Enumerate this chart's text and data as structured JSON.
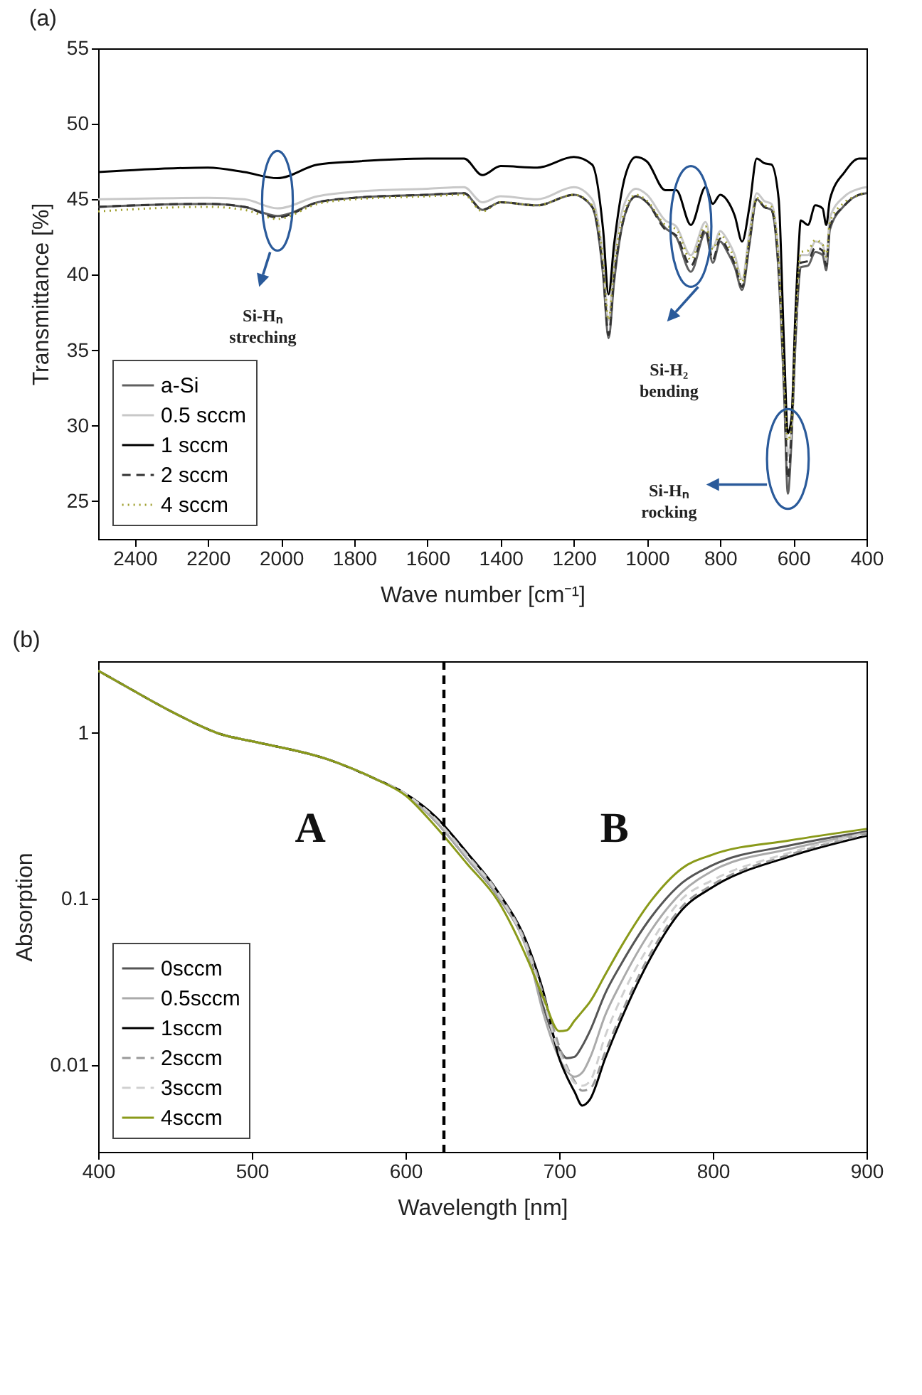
{
  "chart_data": [
    {
      "type": "line",
      "title": "(a)",
      "xlabel": "Wave number [cm⁻¹]",
      "ylabel": "Transmittance [%]",
      "xlim": [
        2500,
        400
      ],
      "ylim": [
        22.5,
        55
      ],
      "xticks": [
        2400,
        2200,
        2000,
        1800,
        1600,
        1400,
        1200,
        1000,
        800,
        600,
        400
      ],
      "yticks": [
        25,
        30,
        35,
        40,
        45,
        50,
        55
      ],
      "legend": "bottom left",
      "x": [
        2500,
        2200,
        2100,
        2010,
        1900,
        1800,
        1600,
        1500,
        1450,
        1400,
        1300,
        1200,
        1150,
        1120,
        1105,
        1090,
        1060,
        1030,
        1000,
        950,
        920,
        880,
        840,
        820,
        800,
        780,
        760,
        740,
        720,
        700,
        680,
        660,
        640,
        625,
        615,
        605,
        595,
        585,
        580,
        560,
        540,
        520,
        510,
        500,
        460,
        420,
        400
      ],
      "series": [
        {
          "name": "a-Si",
          "color": "#606060",
          "line_style": "solid",
          "values": [
            44.5,
            44.7,
            44.5,
            43.9,
            44.8,
            45.1,
            45.3,
            45.4,
            44.3,
            44.8,
            44.6,
            45.3,
            44.5,
            40,
            35.8,
            39.5,
            44,
            45.2,
            44.8,
            43.1,
            42.5,
            40.2,
            42.8,
            40.8,
            42.2,
            41.5,
            40.5,
            39,
            42,
            45,
            44.5,
            44.3,
            40,
            32,
            25.5,
            29,
            35,
            39.5,
            40.5,
            40.6,
            41.5,
            41.3,
            40.3,
            43,
            44.6,
            45.3,
            45.4
          ]
        },
        {
          "name": "0.5 sccm",
          "color": "#c8c8c8",
          "line_style": "solid",
          "values": [
            45,
            45.1,
            45,
            44.4,
            45.2,
            45.5,
            45.7,
            45.8,
            44.8,
            45.2,
            45,
            45.8,
            45,
            41,
            37,
            41,
            44.8,
            45.7,
            45.3,
            43.6,
            43.2,
            41.3,
            43.5,
            41.8,
            42.9,
            42.3,
            41.3,
            39.7,
            42.8,
            45.4,
            44.9,
            44.7,
            41,
            33.5,
            28,
            30,
            36,
            40.5,
            41.3,
            41.3,
            42.2,
            42,
            41,
            43.8,
            45.2,
            45.7,
            45.8
          ]
        },
        {
          "name": "1 sccm",
          "color": "#000000",
          "line_style": "solid",
          "values": [
            46.8,
            47.1,
            46.8,
            46.4,
            47.3,
            47.5,
            47.7,
            47.7,
            46.6,
            47.2,
            47.1,
            47.8,
            47.3,
            43,
            38.7,
            42,
            46.5,
            47.8,
            47.5,
            45.6,
            45.6,
            43.3,
            45.8,
            44.7,
            45.3,
            44.9,
            43.9,
            42.2,
            44.5,
            47.7,
            47.4,
            47.3,
            45,
            35,
            29.5,
            30.5,
            37,
            42,
            43.6,
            43.3,
            44.6,
            44.4,
            43.3,
            45,
            46.8,
            47.7,
            47.7
          ]
        },
        {
          "name": "2 sccm",
          "color": "#333333",
          "line_style": "dashed",
          "values": [
            44.5,
            44.7,
            44.5,
            43.8,
            44.8,
            45.1,
            45.3,
            45.4,
            44.3,
            44.8,
            44.6,
            45.3,
            44.5,
            40.2,
            36,
            39.8,
            44,
            45.2,
            44.8,
            43,
            42.6,
            40.6,
            43,
            41,
            42.4,
            41.7,
            40.7,
            39.2,
            42.2,
            45,
            44.5,
            44.3,
            40.3,
            32.5,
            26.5,
            29.5,
            35.5,
            39.8,
            40.8,
            40.9,
            41.8,
            41.6,
            40.6,
            43.2,
            44.6,
            45.3,
            45.4
          ]
        },
        {
          "name": "4 sccm",
          "color": "#a0a030",
          "line_style": "dotted",
          "values": [
            44.2,
            44.5,
            44.3,
            43.7,
            44.7,
            45,
            45.2,
            45.3,
            44.2,
            44.8,
            44.6,
            45.3,
            44.6,
            41,
            37,
            40.5,
            44.3,
            45.3,
            44.9,
            43.3,
            43,
            41,
            43.2,
            41.7,
            42.7,
            42,
            41,
            39.5,
            42.5,
            45.1,
            44.6,
            44.5,
            41,
            33,
            29,
            30,
            36,
            40.5,
            41.5,
            41.6,
            42.3,
            42,
            41.2,
            43.5,
            44.8,
            45.3,
            45.5
          ]
        }
      ],
      "annotations": [
        "Si-Hₙ streching",
        "Si-H₂ bending",
        "Si-Hₙ rocking"
      ]
    },
    {
      "type": "line",
      "title": "(b)",
      "xlabel": "Wavelength [nm]",
      "ylabel": "Absorption",
      "xlim": [
        400,
        900
      ],
      "ylim": [
        0.003,
        2.7
      ],
      "log": "y",
      "xticks": [
        400,
        500,
        600,
        700,
        800,
        900
      ],
      "yticks": [
        0.01,
        0.1,
        1
      ],
      "legend": "bottom left",
      "x": [
        400,
        420,
        450,
        480,
        500,
        550,
        580,
        600,
        620,
        640,
        660,
        680,
        690,
        700,
        705,
        710,
        715,
        720,
        730,
        740,
        760,
        780,
        800,
        850,
        900
      ],
      "series": [
        {
          "name": "0sccm",
          "color": "#555555",
          "line_style": "solid",
          "values": [
            2.37,
            1.86,
            1.31,
            0.98,
            0.89,
            0.69,
            0.53,
            0.43,
            0.29,
            0.175,
            0.104,
            0.047,
            0.022,
            0.0125,
            0.011,
            0.0112,
            0.013,
            0.016,
            0.027,
            0.04,
            0.078,
            0.125,
            0.16,
            0.21,
            0.255
          ]
        },
        {
          "name": "0.5sccm",
          "color": "#aaaaaa",
          "line_style": "solid",
          "values": [
            2.37,
            1.86,
            1.31,
            0.98,
            0.89,
            0.69,
            0.53,
            0.43,
            0.29,
            0.176,
            0.105,
            0.046,
            0.02,
            0.011,
            0.0092,
            0.0085,
            0.009,
            0.011,
            0.02,
            0.031,
            0.065,
            0.11,
            0.148,
            0.2,
            0.25
          ]
        },
        {
          "name": "1sccm",
          "color": "#000000",
          "line_style": "solid",
          "values": [
            2.37,
            1.86,
            1.31,
            0.98,
            0.89,
            0.69,
            0.53,
            0.43,
            0.31,
            0.19,
            0.111,
            0.0515,
            0.027,
            0.011,
            0.0085,
            0.0069,
            0.0057,
            0.0062,
            0.011,
            0.0185,
            0.045,
            0.086,
            0.118,
            0.18,
            0.24
          ]
        },
        {
          "name": "2sccm",
          "color": "#999999",
          "line_style": "dashed",
          "values": [
            2.37,
            1.86,
            1.31,
            0.98,
            0.89,
            0.69,
            0.53,
            0.43,
            0.3,
            0.185,
            0.11,
            0.05,
            0.026,
            0.013,
            0.0098,
            0.008,
            0.007,
            0.0072,
            0.012,
            0.02,
            0.048,
            0.09,
            0.122,
            0.185,
            0.245
          ]
        },
        {
          "name": "3sccm",
          "color": "#d0d0d0",
          "line_style": "dashed",
          "values": [
            2.37,
            1.86,
            1.31,
            0.98,
            0.89,
            0.69,
            0.53,
            0.43,
            0.3,
            0.182,
            0.108,
            0.048,
            0.024,
            0.012,
            0.0095,
            0.0078,
            0.0075,
            0.008,
            0.015,
            0.025,
            0.055,
            0.1,
            0.13,
            0.19,
            0.25
          ]
        },
        {
          "name": "4sccm",
          "color": "#8a9a1a",
          "line_style": "solid",
          "values": [
            2.37,
            1.86,
            1.31,
            0.98,
            0.89,
            0.69,
            0.53,
            0.42,
            0.27,
            0.163,
            0.098,
            0.042,
            0.025,
            0.016,
            0.0162,
            0.0185,
            0.021,
            0.024,
            0.035,
            0.051,
            0.098,
            0.153,
            0.185,
            0.225,
            0.264
          ]
        }
      ],
      "ref_lines": [
        {
          "axis": "x",
          "value": 625,
          "color": "#000000",
          "line_style": "dashed"
        }
      ],
      "annotations": [
        "A",
        "B"
      ]
    }
  ]
}
